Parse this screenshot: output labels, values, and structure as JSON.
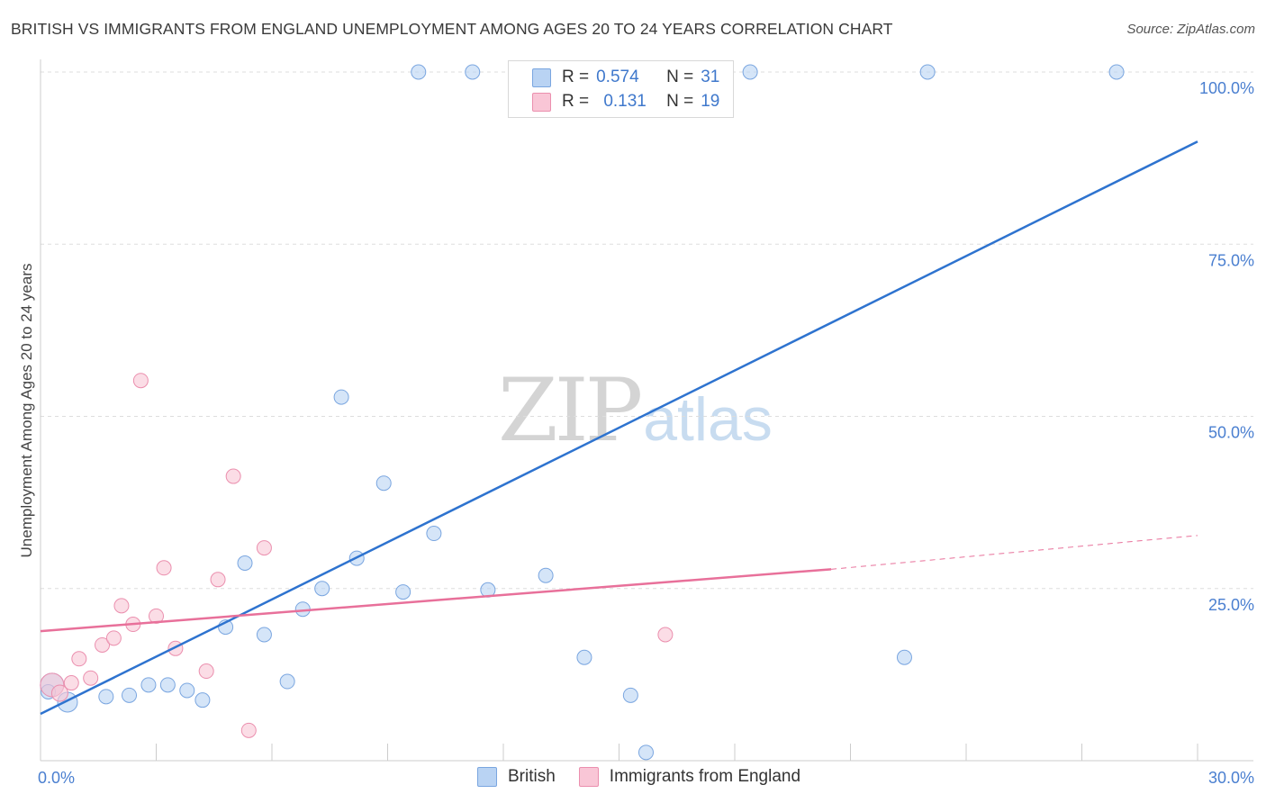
{
  "header": {
    "title": "BRITISH VS IMMIGRANTS FROM ENGLAND UNEMPLOYMENT AMONG AGES 20 TO 24 YEARS CORRELATION CHART",
    "source": "Source: ZipAtlas.com"
  },
  "watermark": {
    "zip": "ZIP",
    "atlas": "atlas"
  },
  "legend": {
    "rows": [
      {
        "r_label": "R =",
        "r_value": "0.574",
        "n_label": "N =",
        "n_value": "31",
        "color": "#b9d3f3",
        "border": "#7aa6e0"
      },
      {
        "r_label": "R =",
        "r_value": "0.131",
        "n_label": "N =",
        "n_value": "19",
        "color": "#f9c6d6",
        "border": "#eb8fae"
      }
    ]
  },
  "bottom_legend": {
    "british": "British",
    "england": "Immigrants from England"
  },
  "colors": {
    "british_fill": "#b9d3f3",
    "british_stroke": "#7aa6e0",
    "british_line": "#2e73cf",
    "england_fill": "#f9c6d6",
    "england_stroke": "#eb8fae",
    "england_line": "#e8709a",
    "grid": "#dddddd",
    "axis": "#cccccc"
  },
  "chart_data": {
    "type": "scatter",
    "title": "BRITISH VS IMMIGRANTS FROM ENGLAND UNEMPLOYMENT AMONG AGES 20 TO 24 YEARS CORRELATION CHART",
    "xlabel": "",
    "ylabel": "Unemployment Among Ages 20 to 24 years",
    "xlim": [
      0,
      30
    ],
    "ylim": [
      0,
      100
    ],
    "x_tick_labels": [
      "0.0%",
      "30.0%"
    ],
    "y_ticks": [
      25,
      50,
      75,
      100
    ],
    "y_tick_labels": [
      "25.0%",
      "50.0%",
      "75.0%",
      "100.0%"
    ],
    "x_minor_ticks": [
      0,
      3,
      6,
      9,
      12,
      15,
      18,
      21,
      24,
      27,
      30
    ],
    "grid": true,
    "legend_position": "top-center",
    "series": [
      {
        "name": "British",
        "R": 0.574,
        "N": 31,
        "points": [
          [
            0.3,
            11.0,
            12
          ],
          [
            0.7,
            8.5,
            10
          ],
          [
            1.7,
            9.3,
            7
          ],
          [
            2.3,
            9.5,
            7
          ],
          [
            2.8,
            11.0,
            7
          ],
          [
            3.3,
            11.0,
            7
          ],
          [
            3.8,
            10.2,
            7
          ],
          [
            4.2,
            8.8,
            7
          ],
          [
            4.8,
            19.4,
            7
          ],
          [
            5.3,
            28.7,
            7
          ],
          [
            5.8,
            18.3,
            7
          ],
          [
            6.4,
            11.5,
            7
          ],
          [
            6.8,
            22.0,
            7
          ],
          [
            7.3,
            25.0,
            7
          ],
          [
            7.8,
            52.8,
            7
          ],
          [
            8.2,
            29.4,
            7
          ],
          [
            8.9,
            40.3,
            7
          ],
          [
            9.4,
            24.5,
            7
          ],
          [
            10.2,
            33.0,
            7
          ],
          [
            11.6,
            24.8,
            7
          ],
          [
            13.1,
            26.9,
            7
          ],
          [
            14.1,
            15.0,
            7
          ],
          [
            15.3,
            9.5,
            7
          ],
          [
            15.7,
            1.2,
            7
          ],
          [
            9.8,
            100,
            7
          ],
          [
            11.2,
            100,
            7
          ],
          [
            22.4,
            15.0,
            7
          ],
          [
            23.0,
            100,
            7
          ],
          [
            27.9,
            100,
            7
          ],
          [
            18.4,
            100,
            7
          ],
          [
            0.2,
            10.0,
            7
          ]
        ],
        "trendline": {
          "x": [
            0,
            30
          ],
          "y": [
            6.8,
            89.9
          ]
        }
      },
      {
        "name": "Immigrants from England",
        "R": 0.131,
        "N": 19,
        "points": [
          [
            0.3,
            11.0,
            12
          ],
          [
            0.5,
            9.8,
            8
          ],
          [
            0.8,
            11.3,
            7
          ],
          [
            1.0,
            14.8,
            7
          ],
          [
            1.3,
            12.0,
            7
          ],
          [
            1.6,
            16.8,
            7
          ],
          [
            1.9,
            17.8,
            7
          ],
          [
            2.1,
            22.5,
            7
          ],
          [
            2.4,
            19.8,
            7
          ],
          [
            2.6,
            55.2,
            7
          ],
          [
            3.0,
            21.0,
            7
          ],
          [
            3.2,
            28.0,
            7
          ],
          [
            3.5,
            16.3,
            7
          ],
          [
            4.3,
            13.0,
            7
          ],
          [
            4.6,
            26.3,
            7
          ],
          [
            5.0,
            41.3,
            7
          ],
          [
            5.4,
            4.4,
            7
          ],
          [
            5.8,
            30.9,
            7
          ],
          [
            16.2,
            18.3,
            7
          ]
        ],
        "trendline": {
          "x": [
            0,
            20.5
          ],
          "y": [
            18.8,
            27.8
          ]
        },
        "trendline_extension": {
          "x": [
            20.5,
            30
          ],
          "y": [
            27.8,
            32.7
          ]
        }
      }
    ]
  }
}
